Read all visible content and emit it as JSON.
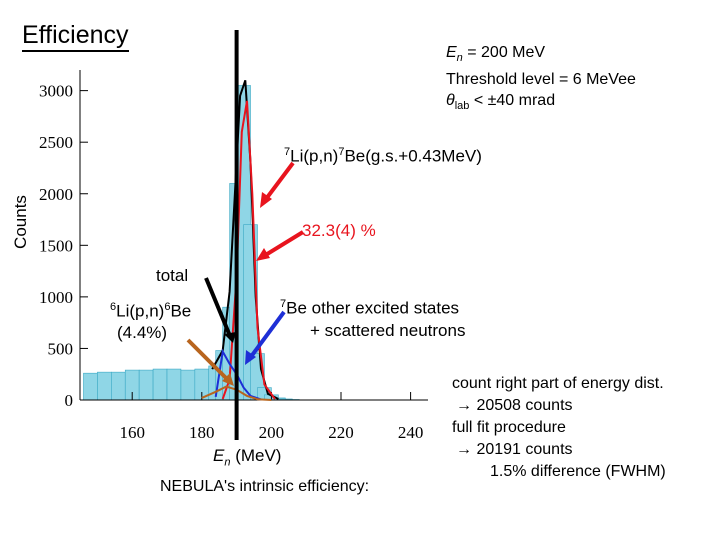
{
  "title": "Efficiency",
  "params": {
    "line1": "E",
    "line1_sub": "n",
    "line1_rest": " = 200 MeV",
    "line2": "Threshold level = 6 MeVee",
    "line3": "θ",
    "line3_sub": "lab",
    "line3_rest": " < ±40 mrad"
  },
  "annotations": {
    "li7_sup": "7",
    "li7_mid": "Li(p,n)",
    "li7_sup2": "7",
    "li7_rest": "Be(g.s.+0.43MeV)",
    "pct": "32.3(4) %",
    "total": "total",
    "li6_sup": "6",
    "li6_mid": "Li(p,n)",
    "li6_sup2": "6",
    "li6_rest": "Be",
    "li6_pct": "(4.4%)",
    "be7_sup": "7",
    "be7_rest": "Be other excited states",
    "be7_line2": "+ scattered neutrons",
    "nebula": "NEBULA's intrinsic efficiency:",
    "xlabel_main": "E",
    "xlabel_sub": "n",
    "xlabel_rest": " (MeV)"
  },
  "notes": {
    "line1": "count right part of energy dist.",
    "line2": "→ 20508 counts",
    "line3": "full fit procedure",
    "line4": "→ 20191 counts",
    "line5": "1.5% difference (FWHM)"
  },
  "colors": {
    "accent_red": "#e8141e",
    "blue": "#1e2fd6",
    "brown": "#b8651e",
    "hist_fill": "#8fd6e6"
  },
  "chart_data": {
    "type": "histogram",
    "xlabel": "En (MeV)",
    "ylabel": "Counts",
    "xlim": [
      145,
      245
    ],
    "ylim": [
      0,
      3200
    ],
    "xticks": [
      160,
      180,
      200,
      220,
      240
    ],
    "yticks": [
      0,
      500,
      1000,
      1500,
      2000,
      2500,
      3000
    ],
    "cut_line_x": 190,
    "histogram": {
      "x": [
        148,
        152,
        156,
        160,
        164,
        168,
        172,
        176,
        180,
        184,
        186,
        188,
        190,
        192,
        194,
        196,
        198,
        200,
        202,
        204,
        206,
        208,
        210
      ],
      "y": [
        260,
        270,
        270,
        290,
        290,
        300,
        300,
        290,
        300,
        330,
        480,
        900,
        2100,
        3050,
        1700,
        450,
        120,
        50,
        20,
        10,
        5,
        0,
        0
      ]
    },
    "series": [
      {
        "name": "total",
        "color": "#000000",
        "x": [
          183,
          186,
          188,
          189.5,
          191,
          192.5,
          194,
          195.5,
          197,
          199,
          202
        ],
        "y": [
          300,
          480,
          1050,
          2000,
          2950,
          3100,
          2300,
          1000,
          300,
          60,
          10
        ]
      },
      {
        "name": "7Li(p,n)7Be(g.s.+0.43MeV)",
        "color": "#e8141e",
        "x": [
          186,
          188,
          190,
          191.5,
          193,
          194.5,
          196,
          198,
          201
        ],
        "y": [
          10,
          200,
          1200,
          2600,
          2900,
          2000,
          700,
          150,
          10
        ]
      },
      {
        "name": "7Be other excited states + scattered neutrons",
        "color": "#1e2fd6",
        "x": [
          184,
          186,
          188,
          190,
          192,
          194,
          197
        ],
        "y": [
          30,
          470,
          350,
          250,
          120,
          40,
          5
        ]
      },
      {
        "name": "6Li(p,n)6Be",
        "color": "#b8651e",
        "x": [
          180,
          184,
          187,
          190,
          193,
          196,
          200
        ],
        "y": [
          20,
          80,
          130,
          100,
          40,
          8,
          0
        ]
      }
    ]
  }
}
